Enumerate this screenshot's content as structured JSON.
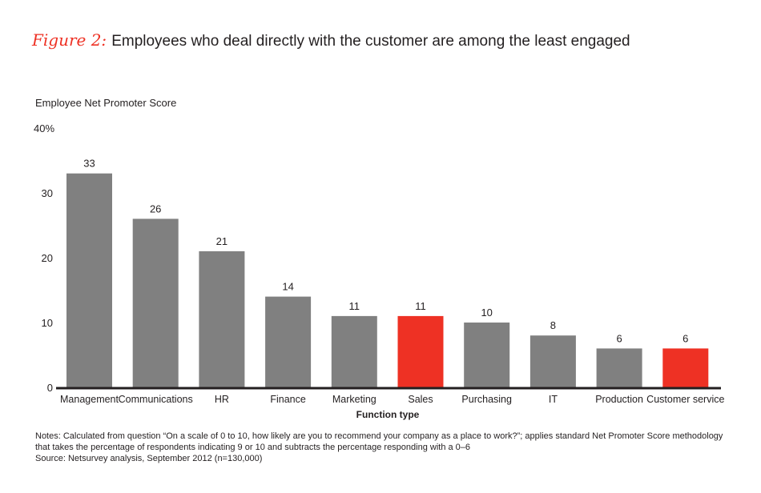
{
  "title": {
    "figure_label": "Figure 2:",
    "text": "Employees who deal directly with the customer are among the least engaged"
  },
  "chart_data": {
    "type": "bar",
    "title": "Employees who deal directly with the customer are among the least engaged",
    "ylabel": "Employee Net Promoter Score",
    "xlabel": "Function type",
    "ylim": [
      0,
      40
    ],
    "yticks": [
      "0",
      "10",
      "20",
      "30",
      "40%"
    ],
    "ytick_values": [
      0,
      10,
      20,
      30,
      40
    ],
    "grid": false,
    "categories": [
      "Management",
      "Communications",
      "HR",
      "Finance",
      "Marketing",
      "Sales",
      "Purchasing",
      "IT",
      "Production",
      "Customer service"
    ],
    "values": [
      33,
      26,
      21,
      14,
      11,
      11,
      10,
      8,
      6,
      6
    ],
    "highlighted": [
      "Sales",
      "Customer service"
    ],
    "colors": {
      "default": "#808080",
      "highlight": "#ee3124",
      "axis": "#231f20"
    }
  },
  "notes": {
    "line1": "Notes: Calculated from question “On a scale of 0 to 10, how likely are you to recommend your company as a place to work?”; applies standard Net Promoter Score methodology",
    "line2": "that takes the percentage of respondents indicating 9 or 10 and subtracts the percentage responding with a 0–6",
    "source": "Source: Netsurvey analysis, September 2012 (n=130,000)"
  }
}
